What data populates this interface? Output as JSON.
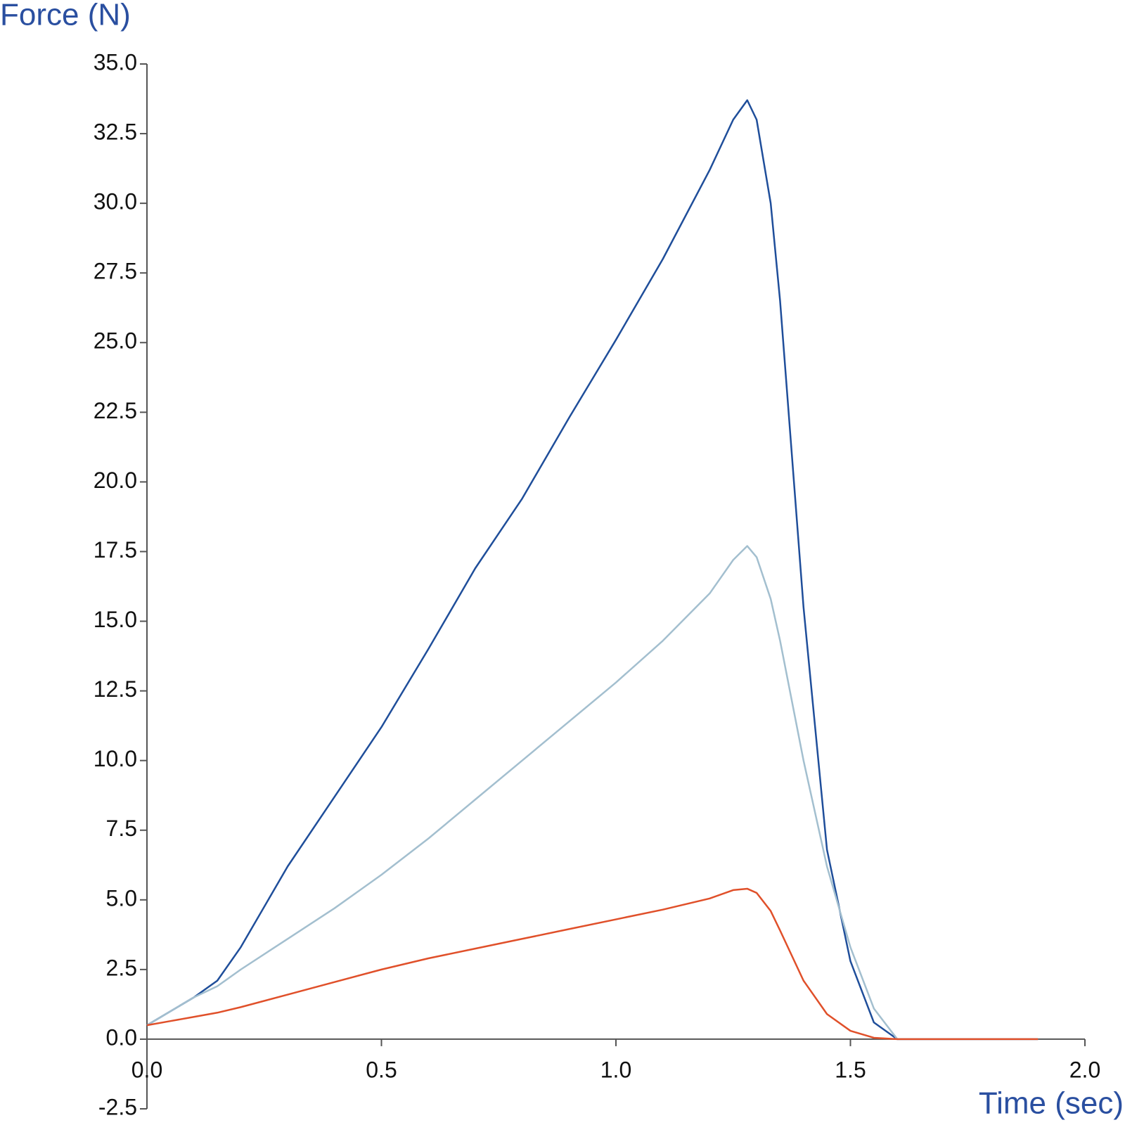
{
  "chart_data": {
    "type": "line",
    "y_label": "Force (N)",
    "x_label": "Time (sec)",
    "x": [
      0,
      0.05,
      0.1,
      0.15,
      0.2,
      0.3,
      0.4,
      0.5,
      0.6,
      0.7,
      0.8,
      0.9,
      1.0,
      1.1,
      1.2,
      1.25,
      1.28,
      1.3,
      1.33,
      1.35,
      1.4,
      1.45,
      1.5,
      1.55,
      1.6,
      1.8,
      1.9
    ],
    "series": [
      {
        "color": "#1f4e9a",
        "values": [
          0.5,
          1.0,
          1.5,
          2.1,
          3.3,
          6.2,
          8.7,
          11.2,
          14.0,
          16.9,
          19.4,
          22.3,
          25.1,
          28.0,
          31.2,
          33.0,
          33.7,
          33.0,
          30.0,
          26.5,
          15.5,
          6.8,
          2.8,
          0.6,
          0,
          0,
          0
        ]
      },
      {
        "color": "#a3bfcf",
        "values": [
          0.5,
          1.0,
          1.5,
          1.9,
          2.5,
          3.6,
          4.7,
          5.9,
          7.2,
          8.6,
          10.0,
          11.4,
          12.8,
          14.3,
          16.0,
          17.2,
          17.7,
          17.3,
          15.8,
          14.3,
          10.0,
          6.2,
          3.3,
          1.1,
          0,
          0,
          0
        ]
      },
      {
        "color": "#e0502a",
        "values": [
          0.5,
          0.65,
          0.8,
          0.95,
          1.15,
          1.6,
          2.05,
          2.5,
          2.9,
          3.25,
          3.6,
          3.95,
          4.3,
          4.65,
          5.05,
          5.35,
          5.4,
          5.25,
          4.6,
          3.9,
          2.1,
          0.9,
          0.3,
          0.05,
          0,
          0,
          0
        ]
      }
    ],
    "xlim": [
      0,
      2
    ],
    "xticks": [
      {
        "value": 0,
        "label": "0.0"
      },
      0.5,
      {
        "value": 1,
        "label": "1.0"
      },
      1.5,
      {
        "value": 2,
        "label": "2.0"
      }
    ],
    "ylim": [
      -2.5,
      35
    ],
    "yticks": [
      -2.5,
      {
        "value": 0,
        "label": "0.0"
      },
      2.5,
      {
        "value": 5,
        "label": "5.0"
      },
      7.5,
      {
        "value": 10,
        "label": "10.0"
      },
      12.5,
      {
        "value": 15,
        "label": "15.0"
      },
      17.5,
      {
        "value": 20,
        "label": "20.0"
      },
      22.5,
      {
        "value": 25,
        "label": "25.0"
      },
      27.5,
      {
        "value": 30,
        "label": "30.0"
      },
      32.5,
      {
        "value": 35,
        "label": "35.0"
      }
    ],
    "grid": false
  }
}
